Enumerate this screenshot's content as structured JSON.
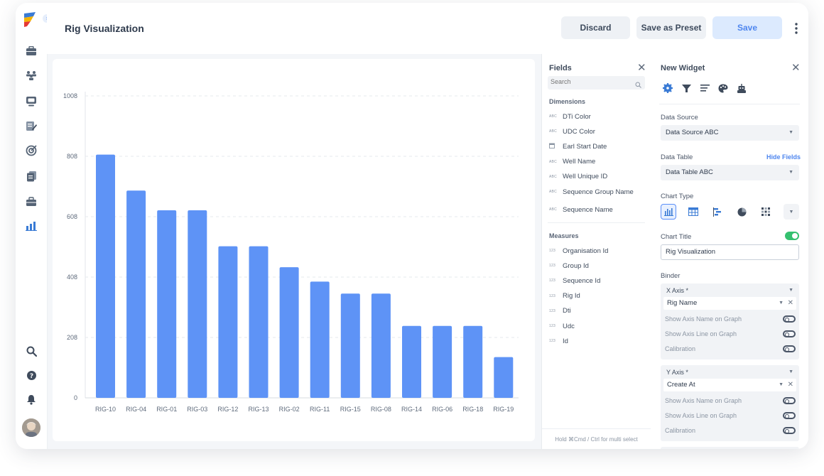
{
  "app": {
    "title": "Rig Visualization"
  },
  "toolbar": {
    "discard_label": "Discard",
    "save_preset_label": "Save as Preset",
    "save_label": "Save"
  },
  "fields_panel": {
    "title": "Fields",
    "search_placeholder": "Search",
    "dimensions_label": "Dimensions",
    "dimensions": [
      {
        "type": "ABC",
        "label": "DTi Color"
      },
      {
        "type": "ABC",
        "label": "UDC Color"
      },
      {
        "type": "calendar",
        "label": "Earl Start Date"
      },
      {
        "type": "ABC",
        "label": "Well Name"
      },
      {
        "type": "ABC",
        "label": "Well Unique ID"
      },
      {
        "type": "ABC",
        "label": "Sequence Group Name"
      },
      {
        "type": "ABC",
        "label": "Sequence Name"
      }
    ],
    "measures_label": "Measures",
    "measures": [
      {
        "type": "123",
        "label": "Organisation Id"
      },
      {
        "type": "123",
        "label": "Group Id"
      },
      {
        "type": "123",
        "label": "Sequence Id"
      },
      {
        "type": "123",
        "label": "Rig Id"
      },
      {
        "type": "123",
        "label": "Dti"
      },
      {
        "type": "123",
        "label": "Udc"
      },
      {
        "type": "123",
        "label": "Id"
      }
    ],
    "footer": "Hold ⌘Cmd / Ctrl for multi select"
  },
  "widget_panel": {
    "title": "New Widget",
    "tabs": [
      "gear-icon",
      "filter-icon",
      "align-icon",
      "palette-icon",
      "robot-icon"
    ],
    "data_source_label": "Data Source",
    "data_source_value": "Data Source ABC",
    "data_table_label": "Data Table",
    "hide_fields_label": "Hide Fields",
    "data_table_value": "Data Table ABC",
    "chart_type_label": "Chart Type",
    "chart_types": [
      "bar-chart-icon",
      "table-icon",
      "gantt-icon",
      "pie-chart-icon",
      "heatmap-icon"
    ],
    "chart_title_label": "Chart Title",
    "chart_title_toggle": true,
    "chart_title_value": "Rig Visualization",
    "binder_label": "Binder",
    "x_axis": {
      "label": "X Axis *",
      "value": "Rig Name",
      "options": [
        "Show Axis Name on Graph",
        "Show Axis Line on Graph",
        "Calibration"
      ]
    },
    "y_axis": {
      "label": "Y Axis *",
      "value": "Create At",
      "options": [
        "Show Axis Name on Graph",
        "Show Axis Line on Graph",
        "Calibration"
      ]
    }
  },
  "nav": [
    "briefcase-icon",
    "team-icon",
    "monitor-icon",
    "edit-report-icon",
    "target-icon",
    "documents-icon",
    "toolbox-icon",
    "bar-chart-icon",
    "search-icon",
    "help-icon",
    "bell-icon",
    "avatar"
  ],
  "colors": {
    "bar": "#5e93f6",
    "accent": "#4e86ef",
    "toggle_on": "#35c06f"
  },
  "chart_data": {
    "type": "bar",
    "categories": [
      "RIG-10",
      "RIG-04",
      "RIG-01",
      "RIG-03",
      "RIG-12",
      "RIG-13",
      "RIG-02",
      "RIG-11",
      "RIG-15",
      "RIG-08",
      "RIG-14",
      "RIG-06",
      "RIG-18",
      "RIG-19"
    ],
    "values": [
      812,
      692,
      626,
      626,
      506,
      506,
      436,
      388,
      348,
      348,
      240,
      240,
      240,
      136
    ],
    "yticks": [
      "0",
      "208",
      "408",
      "608",
      "808",
      "1008"
    ],
    "ylim": [
      0,
      1008
    ],
    "grid": true,
    "title": "",
    "xlabel": "",
    "ylabel": ""
  }
}
